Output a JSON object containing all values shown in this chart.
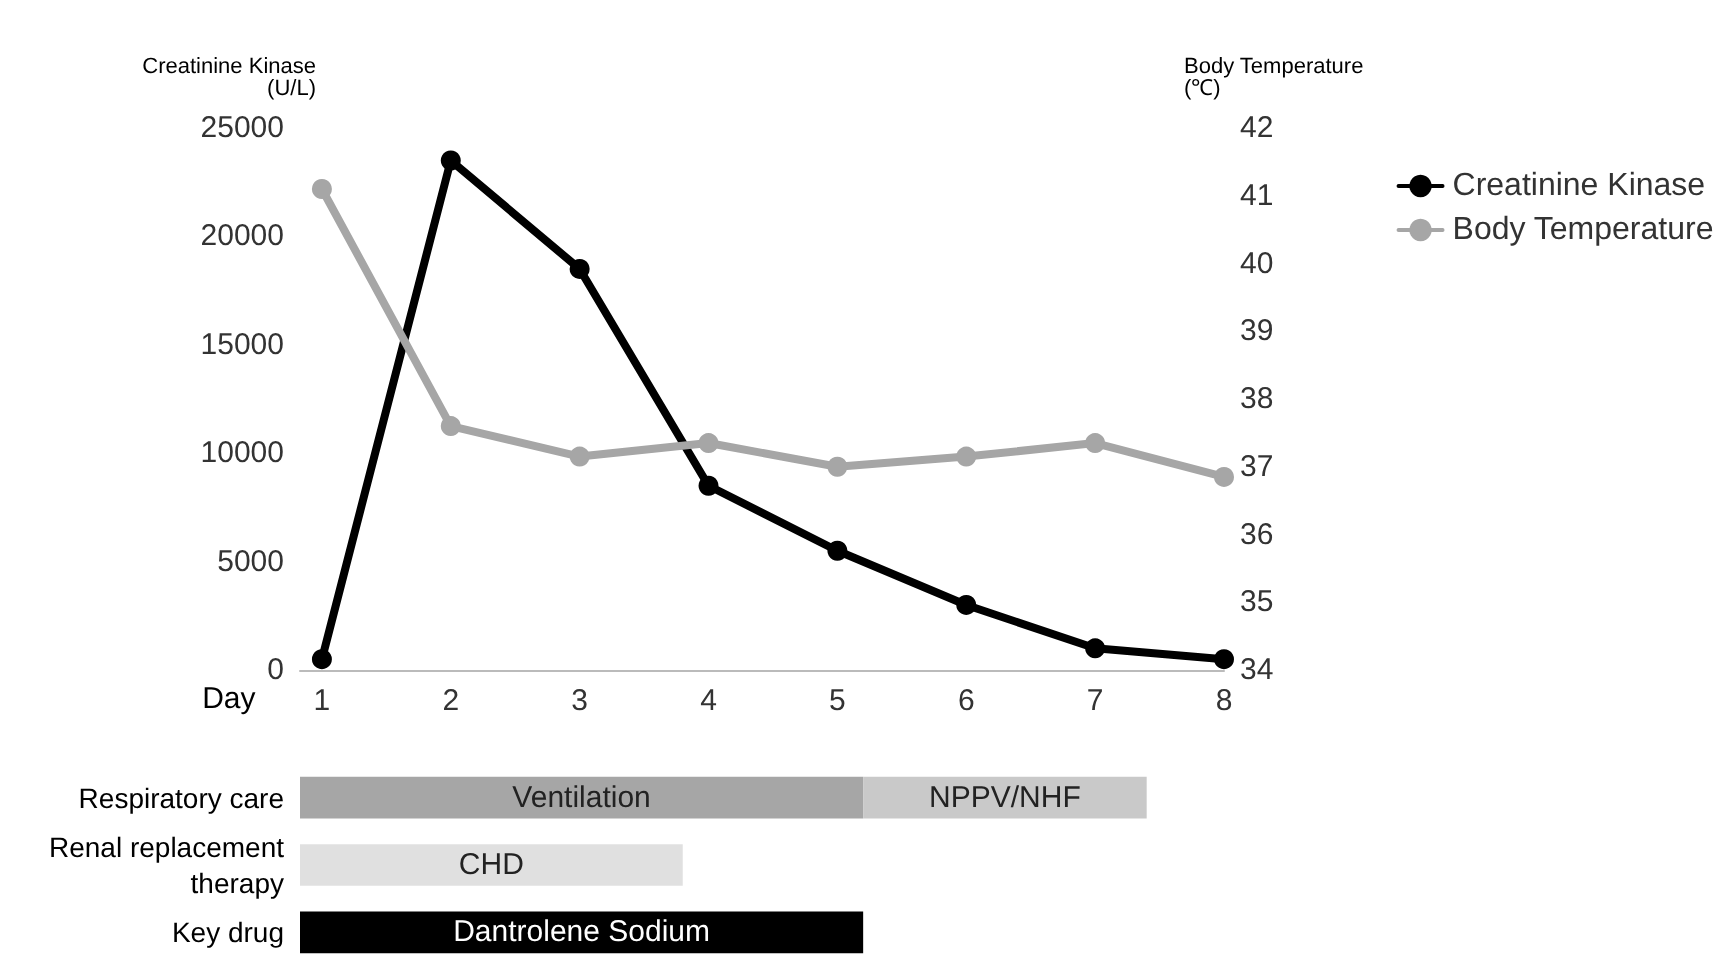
{
  "chart_data": [
    {
      "type": "line",
      "xlabel": "Day",
      "ylabel": "Creatinine Kinase\n(U/L)",
      "y2label": "Body Temperature\n(℃)",
      "x": [
        1,
        2,
        3,
        4,
        5,
        6,
        7,
        8
      ],
      "series": [
        {
          "name": "Creatinine Kinase",
          "color": "#000000",
          "values": [
            500,
            23500,
            18500,
            8500,
            5500,
            3000,
            1000,
            500
          ]
        },
        {
          "name": "Body Temperature",
          "color": "#a6a6a6",
          "axis": "y2",
          "values": [
            41.1,
            37.6,
            37.15,
            37.35,
            37.0,
            37.15,
            37.35,
            36.85
          ]
        }
      ],
      "xlim": [
        0.83,
        8
      ],
      "xticks": [
        1,
        2,
        3,
        4,
        5,
        6,
        7,
        8
      ],
      "ylim": [
        0,
        25000
      ],
      "yticks": [
        0,
        5000,
        10000,
        15000,
        20000,
        25000
      ],
      "y2lim": [
        34,
        42
      ],
      "y2ticks": [
        34,
        35,
        36,
        37,
        38,
        39,
        40,
        41,
        42
      ],
      "grid": false,
      "legend": "right",
      "marker": "circle",
      "line_style": "solid"
    },
    {
      "type": "bar",
      "orientation": "horizontal",
      "categories": [
        "Respiratory care",
        "Renal replacement\ntherapy",
        "Key drug"
      ],
      "series": [
        {
          "color": "#a6a6a6",
          "base": [
            0.83,
            null,
            null
          ],
          "values": [
            4.37,
            null,
            null
          ],
          "value_labels": [
            "Ventilation",
            null,
            null
          ]
        },
        {
          "color": "#c9c9c9",
          "base": [
            5.2,
            null,
            null
          ],
          "values": [
            2.2,
            null,
            null
          ],
          "value_labels": [
            "NPPV/NHF",
            null,
            null
          ]
        },
        {
          "color": "#e0e0e0",
          "base": [
            null,
            0.83,
            null
          ],
          "values": [
            null,
            2.97,
            null
          ],
          "value_labels": [
            null,
            "CHD",
            null
          ]
        },
        {
          "color": "#000000",
          "base": [
            null,
            null,
            0.83
          ],
          "values": [
            null,
            null,
            4.37
          ],
          "value_labels": [
            null,
            null,
            "Dantrolene Sodium"
          ]
        }
      ],
      "xlim": [
        0.83,
        8
      ],
      "tick_labels": "y"
    }
  ]
}
